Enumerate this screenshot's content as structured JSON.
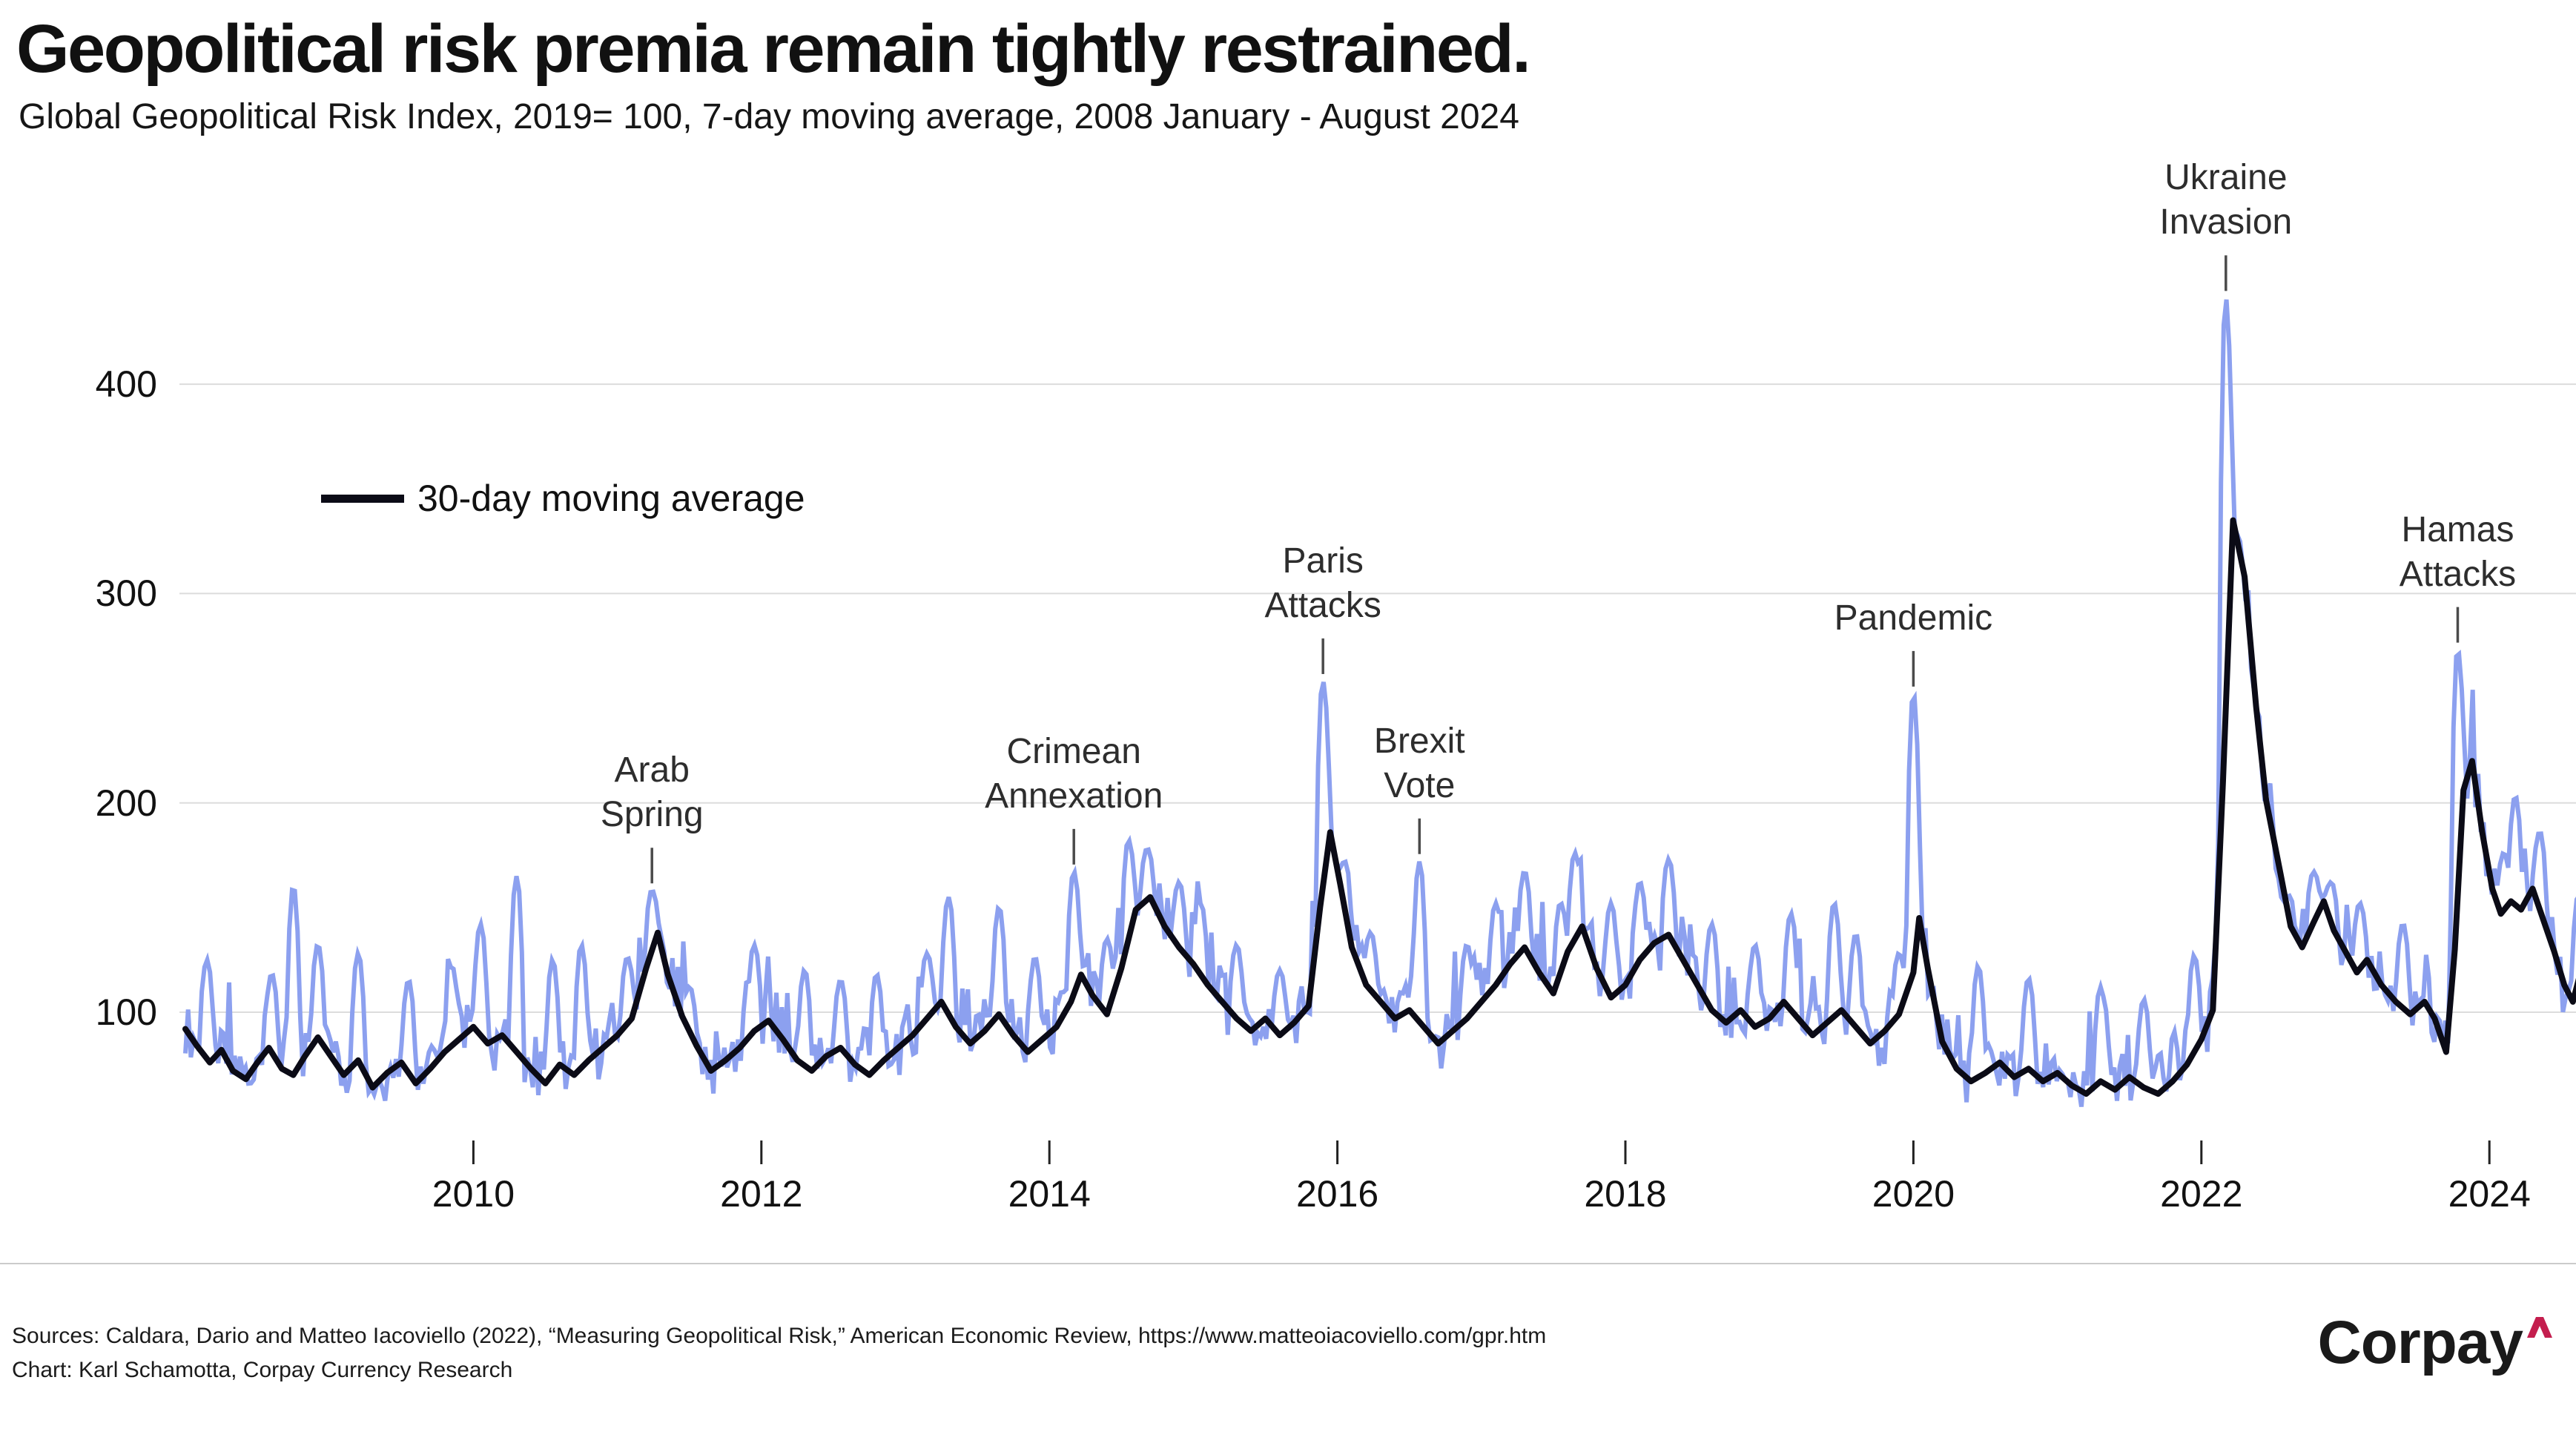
{
  "header": {
    "title": "Geopolitical risk premia remain tightly restrained.",
    "subtitle": "Global Geopolitical Risk Index, 2019= 100, 7-day moving average, 2008 January - August 2024"
  },
  "legend": {
    "label": "30-day moving average"
  },
  "colors": {
    "series_7day": "#8CA0EF",
    "series_30day": "#0B0B16",
    "grid": "#DCDCDC",
    "axis_text": "#111111",
    "tick": "#222222",
    "annotation_text": "#2D2D2D",
    "annotation_pointer": "#4B4B4B",
    "separator": "#CBCBCB",
    "logo_text": "#1A1A1A",
    "logo_caret": "#C41E4E"
  },
  "y_axis": {
    "tick_labels": [
      400,
      300,
      200,
      100
    ]
  },
  "x_axis": {
    "tick_labels": [
      2010,
      2012,
      2014,
      2016,
      2018,
      2020,
      2022,
      2024
    ]
  },
  "annotations": [
    {
      "id": "arab-spring",
      "lines": [
        "Arab",
        "Spring"
      ],
      "year": 2011.24,
      "peak_value": 158
    },
    {
      "id": "crimean-annexation",
      "lines": [
        "Crimean",
        "Annexation"
      ],
      "year": 2014.17,
      "peak_value": 167
    },
    {
      "id": "paris-attacks",
      "lines": [
        "Paris",
        "Attacks"
      ],
      "year": 2015.9,
      "peak_value": 258
    },
    {
      "id": "brexit-vote",
      "lines": [
        "Brexit",
        "Vote"
      ],
      "year": 2016.57,
      "peak_value": 172
    },
    {
      "id": "pandemic",
      "lines": [
        "Pandemic"
      ],
      "year": 2020.0,
      "peak_value": 252
    },
    {
      "id": "ukraine-invasion",
      "lines": [
        "Ukraine",
        "Invasion"
      ],
      "year": 2022.17,
      "peak_value": 441
    },
    {
      "id": "hamas-attacks",
      "lines": [
        "Hamas",
        "Attacks"
      ],
      "year": 2023.78,
      "peak_value": 273
    }
  ],
  "chart_data": {
    "type": "line",
    "title": "Geopolitical risk premia remain tightly restrained.",
    "subtitle": "Global Geopolitical Risk Index, 2019= 100, 7-day moving average, 2008 January - August 2024",
    "x_range": [
      2008.0,
      2024.63
    ],
    "ylim": [
      40,
      460
    ],
    "y_gridlines": [
      100,
      200,
      300,
      400
    ],
    "x_ticks": [
      2010,
      2012,
      2014,
      2016,
      2018,
      2020,
      2022,
      2024
    ],
    "grid": true,
    "legend_position": "inside-top-left",
    "series": [
      {
        "name": "7-day moving average",
        "color": "#8CA0EF",
        "style": "noisy",
        "volatility": 13,
        "floor": 46,
        "spikes": [
          [
            2008.15,
            125
          ],
          [
            2008.6,
            118
          ],
          [
            2008.75,
            160
          ],
          [
            2008.92,
            132
          ],
          [
            2009.2,
            128
          ],
          [
            2009.55,
            115
          ],
          [
            2009.85,
            122
          ],
          [
            2010.05,
            142
          ],
          [
            2010.3,
            165
          ],
          [
            2010.55,
            125
          ],
          [
            2010.75,
            132
          ],
          [
            2011.07,
            126
          ],
          [
            2011.24,
            158
          ],
          [
            2011.5,
            112
          ],
          [
            2011.95,
            132
          ],
          [
            2012.3,
            120
          ],
          [
            2012.55,
            115
          ],
          [
            2012.8,
            118
          ],
          [
            2013.15,
            128
          ],
          [
            2013.3,
            155
          ],
          [
            2013.65,
            150
          ],
          [
            2013.9,
            126
          ],
          [
            2014.17,
            167
          ],
          [
            2014.4,
            135
          ],
          [
            2014.55,
            182
          ],
          [
            2014.68,
            178
          ],
          [
            2014.9,
            162
          ],
          [
            2015.05,
            152
          ],
          [
            2015.3,
            132
          ],
          [
            2015.6,
            120
          ],
          [
            2015.9,
            258
          ],
          [
            2016.05,
            172
          ],
          [
            2016.23,
            138
          ],
          [
            2016.57,
            172
          ],
          [
            2016.9,
            132
          ],
          [
            2017.1,
            152
          ],
          [
            2017.3,
            167
          ],
          [
            2017.55,
            152
          ],
          [
            2017.65,
            176
          ],
          [
            2017.9,
            152
          ],
          [
            2018.1,
            162
          ],
          [
            2018.3,
            173
          ],
          [
            2018.6,
            142
          ],
          [
            2018.9,
            132
          ],
          [
            2019.15,
            147
          ],
          [
            2019.45,
            152
          ],
          [
            2019.6,
            137
          ],
          [
            2019.9,
            128
          ],
          [
            2020.0,
            252
          ],
          [
            2020.45,
            122
          ],
          [
            2020.8,
            116
          ],
          [
            2021.3,
            112
          ],
          [
            2021.6,
            106
          ],
          [
            2021.95,
            127
          ],
          [
            2022.17,
            441
          ],
          [
            2022.78,
            167
          ],
          [
            2022.9,
            162
          ],
          [
            2023.1,
            152
          ],
          [
            2023.4,
            142
          ],
          [
            2023.78,
            273
          ],
          [
            2024.1,
            176
          ],
          [
            2024.18,
            203
          ],
          [
            2024.35,
            186
          ],
          [
            2024.62,
            156
          ]
        ]
      },
      {
        "name": "30-day moving average",
        "color": "#0B0B16",
        "anchors": [
          [
            2008.0,
            92
          ],
          [
            2008.08,
            84
          ],
          [
            2008.17,
            76
          ],
          [
            2008.25,
            82
          ],
          [
            2008.33,
            72
          ],
          [
            2008.42,
            68
          ],
          [
            2008.5,
            76
          ],
          [
            2008.58,
            83
          ],
          [
            2008.67,
            73
          ],
          [
            2008.75,
            70
          ],
          [
            2008.83,
            79
          ],
          [
            2008.92,
            88
          ],
          [
            2009.0,
            80
          ],
          [
            2009.1,
            70
          ],
          [
            2009.2,
            77
          ],
          [
            2009.3,
            64
          ],
          [
            2009.4,
            71
          ],
          [
            2009.5,
            76
          ],
          [
            2009.6,
            66
          ],
          [
            2009.7,
            73
          ],
          [
            2009.8,
            81
          ],
          [
            2009.9,
            87
          ],
          [
            2010.0,
            93
          ],
          [
            2010.1,
            85
          ],
          [
            2010.2,
            89
          ],
          [
            2010.3,
            81
          ],
          [
            2010.4,
            73
          ],
          [
            2010.5,
            66
          ],
          [
            2010.6,
            75
          ],
          [
            2010.7,
            70
          ],
          [
            2010.8,
            77
          ],
          [
            2010.9,
            83
          ],
          [
            2011.0,
            89
          ],
          [
            2011.1,
            97
          ],
          [
            2011.2,
            121
          ],
          [
            2011.28,
            138
          ],
          [
            2011.35,
            118
          ],
          [
            2011.45,
            98
          ],
          [
            2011.55,
            84
          ],
          [
            2011.65,
            72
          ],
          [
            2011.75,
            77
          ],
          [
            2011.85,
            83
          ],
          [
            2011.95,
            91
          ],
          [
            2012.05,
            96
          ],
          [
            2012.15,
            87
          ],
          [
            2012.25,
            77
          ],
          [
            2012.35,
            72
          ],
          [
            2012.45,
            79
          ],
          [
            2012.55,
            83
          ],
          [
            2012.65,
            75
          ],
          [
            2012.75,
            70
          ],
          [
            2012.85,
            77
          ],
          [
            2012.95,
            83
          ],
          [
            2013.05,
            89
          ],
          [
            2013.15,
            97
          ],
          [
            2013.25,
            105
          ],
          [
            2013.35,
            93
          ],
          [
            2013.45,
            85
          ],
          [
            2013.55,
            91
          ],
          [
            2013.65,
            99
          ],
          [
            2013.75,
            89
          ],
          [
            2013.85,
            81
          ],
          [
            2013.95,
            87
          ],
          [
            2014.05,
            93
          ],
          [
            2014.15,
            105
          ],
          [
            2014.22,
            118
          ],
          [
            2014.3,
            108
          ],
          [
            2014.4,
            99
          ],
          [
            2014.5,
            121
          ],
          [
            2014.6,
            149
          ],
          [
            2014.7,
            155
          ],
          [
            2014.8,
            141
          ],
          [
            2014.9,
            131
          ],
          [
            2015.0,
            123
          ],
          [
            2015.1,
            113
          ],
          [
            2015.2,
            105
          ],
          [
            2015.3,
            97
          ],
          [
            2015.4,
            91
          ],
          [
            2015.5,
            97
          ],
          [
            2015.6,
            89
          ],
          [
            2015.7,
            95
          ],
          [
            2015.8,
            103
          ],
          [
            2015.88,
            150
          ],
          [
            2015.95,
            186
          ],
          [
            2016.02,
            161
          ],
          [
            2016.1,
            131
          ],
          [
            2016.2,
            113
          ],
          [
            2016.3,
            105
          ],
          [
            2016.4,
            97
          ],
          [
            2016.5,
            101
          ],
          [
            2016.6,
            93
          ],
          [
            2016.7,
            85
          ],
          [
            2016.8,
            91
          ],
          [
            2016.9,
            97
          ],
          [
            2017.0,
            105
          ],
          [
            2017.1,
            113
          ],
          [
            2017.2,
            123
          ],
          [
            2017.3,
            131
          ],
          [
            2017.4,
            119
          ],
          [
            2017.5,
            109
          ],
          [
            2017.6,
            129
          ],
          [
            2017.7,
            141
          ],
          [
            2017.8,
            121
          ],
          [
            2017.9,
            107
          ],
          [
            2018.0,
            113
          ],
          [
            2018.1,
            125
          ],
          [
            2018.2,
            133
          ],
          [
            2018.3,
            137
          ],
          [
            2018.4,
            125
          ],
          [
            2018.5,
            113
          ],
          [
            2018.6,
            101
          ],
          [
            2018.7,
            95
          ],
          [
            2018.8,
            101
          ],
          [
            2018.9,
            93
          ],
          [
            2019.0,
            97
          ],
          [
            2019.1,
            105
          ],
          [
            2019.2,
            97
          ],
          [
            2019.3,
            89
          ],
          [
            2019.4,
            95
          ],
          [
            2019.5,
            101
          ],
          [
            2019.6,
            93
          ],
          [
            2019.7,
            85
          ],
          [
            2019.8,
            91
          ],
          [
            2019.9,
            99
          ],
          [
            2020.0,
            119
          ],
          [
            2020.04,
            145
          ],
          [
            2020.1,
            121
          ],
          [
            2020.2,
            86
          ],
          [
            2020.3,
            73
          ],
          [
            2020.4,
            67
          ],
          [
            2020.5,
            71
          ],
          [
            2020.6,
            76
          ],
          [
            2020.7,
            69
          ],
          [
            2020.8,
            73
          ],
          [
            2020.9,
            67
          ],
          [
            2021.0,
            71
          ],
          [
            2021.1,
            65
          ],
          [
            2021.2,
            61
          ],
          [
            2021.3,
            67
          ],
          [
            2021.4,
            63
          ],
          [
            2021.5,
            69
          ],
          [
            2021.6,
            64
          ],
          [
            2021.7,
            61
          ],
          [
            2021.8,
            67
          ],
          [
            2021.9,
            75
          ],
          [
            2022.0,
            87
          ],
          [
            2022.08,
            101
          ],
          [
            2022.15,
            210
          ],
          [
            2022.22,
            335
          ],
          [
            2022.3,
            308
          ],
          [
            2022.38,
            246
          ],
          [
            2022.45,
            201
          ],
          [
            2022.55,
            166
          ],
          [
            2022.62,
            141
          ],
          [
            2022.7,
            131
          ],
          [
            2022.78,
            143
          ],
          [
            2022.85,
            153
          ],
          [
            2022.92,
            139
          ],
          [
            2023.0,
            129
          ],
          [
            2023.08,
            119
          ],
          [
            2023.15,
            125
          ],
          [
            2023.25,
            113
          ],
          [
            2023.35,
            105
          ],
          [
            2023.45,
            99
          ],
          [
            2023.55,
            105
          ],
          [
            2023.62,
            97
          ],
          [
            2023.7,
            81
          ],
          [
            2023.76,
            130
          ],
          [
            2023.82,
            206
          ],
          [
            2023.88,
            220
          ],
          [
            2023.95,
            186
          ],
          [
            2024.02,
            159
          ],
          [
            2024.08,
            147
          ],
          [
            2024.15,
            153
          ],
          [
            2024.22,
            149
          ],
          [
            2024.3,
            159
          ],
          [
            2024.38,
            143
          ],
          [
            2024.45,
            129
          ],
          [
            2024.52,
            113
          ],
          [
            2024.58,
            105
          ],
          [
            2024.64,
            121
          ]
        ]
      }
    ]
  },
  "footer": {
    "sources_line": "Sources: Caldara, Dario and Matteo Iacoviello (2022), “Measuring Geopolitical Risk,” American Economic Review, https://www.matteoiacoviello.com/gpr.htm",
    "chart_line": "Chart: Karl Schamotta, Corpay Currency Research"
  },
  "logo": {
    "text": "Corpay",
    "caret_symbol": "^"
  }
}
